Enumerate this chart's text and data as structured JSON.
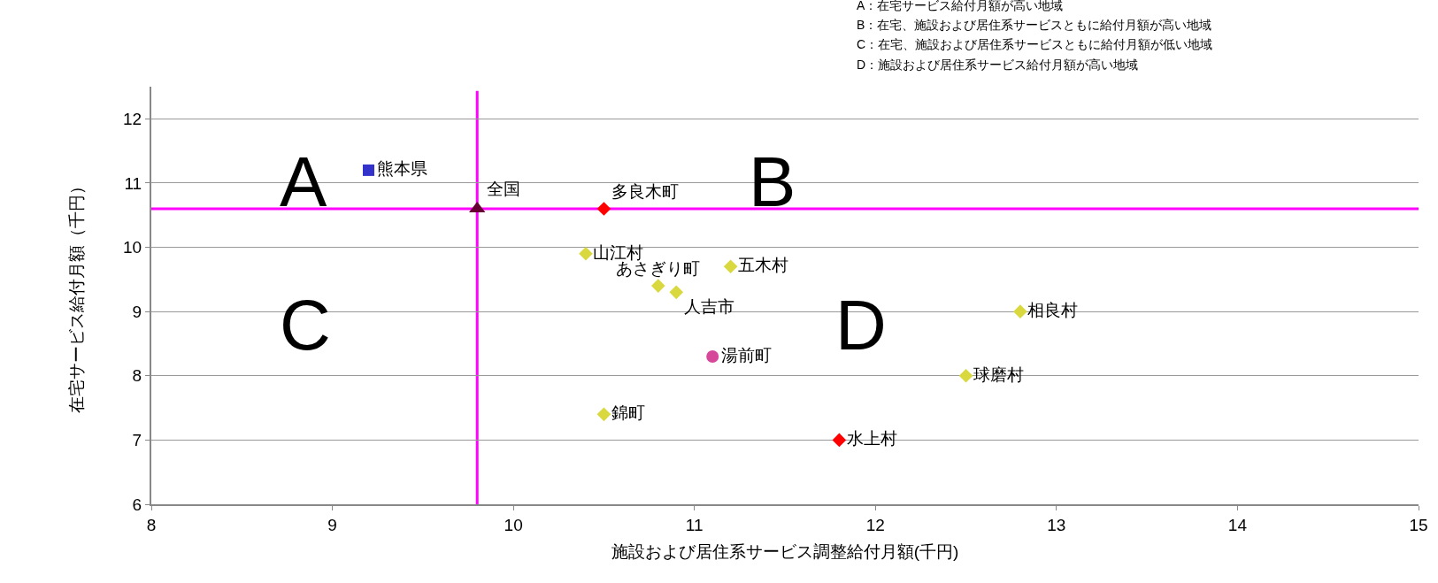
{
  "chart_data": {
    "type": "scatter",
    "xlabel": "施設および居住系サービス調整給付月額(千円)",
    "ylabel": "在宅サービス給付月額（千円）",
    "xlim": [
      8,
      15
    ],
    "xticks": [
      8,
      9,
      10,
      11,
      12,
      13,
      14,
      15
    ],
    "ylim": [
      6,
      12.5
    ],
    "yticks": [
      6,
      7,
      8,
      9,
      10,
      11,
      12
    ],
    "grid": "y",
    "legend": false,
    "series": [
      {
        "name": "熊本県",
        "color": "#3333cc",
        "marker": "square",
        "x": [
          9.2
        ],
        "values": [
          11.2
        ]
      },
      {
        "name": "全国",
        "color": "#660033",
        "marker": "triangle",
        "x": [
          9.8
        ],
        "values": [
          10.6
        ]
      },
      {
        "name": "多良木町",
        "color": "#ff0000",
        "marker": "diamond",
        "x": [
          10.5
        ],
        "values": [
          10.6
        ]
      },
      {
        "name": "山江村",
        "color": "#d9d93f",
        "marker": "diamond",
        "x": [
          10.4
        ],
        "values": [
          9.9
        ]
      },
      {
        "name": "五木村",
        "color": "#d9d93f",
        "marker": "diamond",
        "x": [
          11.2
        ],
        "values": [
          9.7
        ]
      },
      {
        "name": "あさぎり町",
        "color": "#d9d93f",
        "marker": "diamond",
        "x": [
          10.8
        ],
        "values": [
          9.4
        ]
      },
      {
        "name": "人吉市",
        "color": "#d9d93f",
        "marker": "diamond",
        "x": [
          10.9
        ],
        "values": [
          9.3
        ]
      },
      {
        "name": "相良村",
        "color": "#d9d93f",
        "marker": "diamond",
        "x": [
          12.8
        ],
        "values": [
          9.0
        ]
      },
      {
        "name": "湯前町",
        "color": "#d6489a",
        "marker": "circle",
        "x": [
          11.1
        ],
        "values": [
          8.3
        ]
      },
      {
        "name": "球磨村",
        "color": "#d9d93f",
        "marker": "diamond",
        "x": [
          12.5
        ],
        "values": [
          8.0
        ]
      },
      {
        "name": "錦町",
        "color": "#d9d93f",
        "marker": "diamond",
        "x": [
          10.5
        ],
        "values": [
          7.4
        ]
      },
      {
        "name": "水上村",
        "color": "#ff0000",
        "marker": "diamond",
        "x": [
          11.8
        ],
        "values": [
          7.0
        ]
      }
    ],
    "ref_lines": [
      {
        "axis": "x",
        "value": 9.8,
        "color": "#ff00ff"
      },
      {
        "axis": "y",
        "value": 10.6,
        "color": "#ff00ff"
      }
    ],
    "annotations": [
      "A",
      "B",
      "C",
      "D",
      "A：在宅サービス給付月額が高い地域",
      "B：在宅、施設および居住系サービスともに給付月額が高い地域",
      "C：在宅、施設および居住系サービスともに給付月額が低い地域",
      "D：施設および居住系サービス給付月額が高い地域"
    ]
  }
}
